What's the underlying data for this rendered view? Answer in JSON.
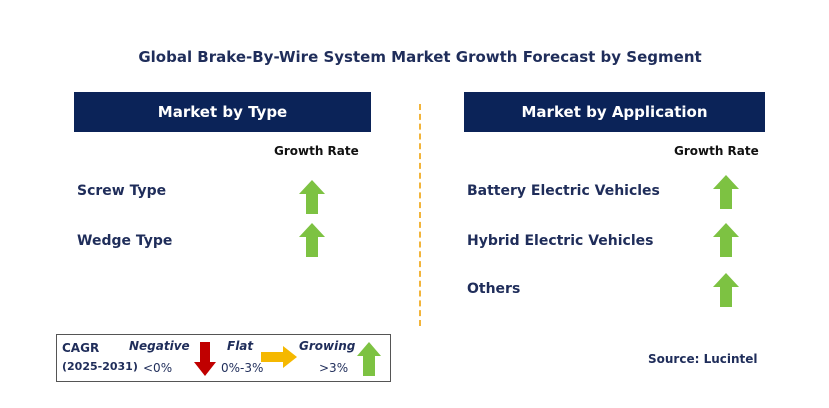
{
  "title": "Global Brake-By-Wire System Market Growth Forecast by Segment",
  "panels": {
    "type": {
      "header": "Market by Type",
      "growth_label": "Growth Rate",
      "items": [
        {
          "label": "Screw Type",
          "trend": "growing"
        },
        {
          "label": "Wedge Type",
          "trend": "growing"
        }
      ]
    },
    "application": {
      "header": "Market by Application",
      "growth_label": "Growth Rate",
      "items": [
        {
          "label": "Battery Electric Vehicles",
          "trend": "growing"
        },
        {
          "label": "Hybrid Electric Vehicles",
          "trend": "growing"
        },
        {
          "label": "Others",
          "trend": "growing"
        }
      ]
    }
  },
  "legend": {
    "cagr": "CAGR",
    "years": "(2025-2031)",
    "negative": {
      "label": "Negative",
      "range": "<0%",
      "icon": "red-down-arrow-icon"
    },
    "flat": {
      "label": "Flat",
      "range": "0%-3%",
      "icon": "orange-right-arrow-icon"
    },
    "growing": {
      "label": "Growing",
      "range": ">3%",
      "icon": "green-up-arrow-icon"
    }
  },
  "source": "Source: Lucintel",
  "colors": {
    "header_bg": "#0b2358",
    "growing": "#7dc242",
    "flat": "#f5b800",
    "negative": "#c00000",
    "divider": "#f2b43a"
  }
}
